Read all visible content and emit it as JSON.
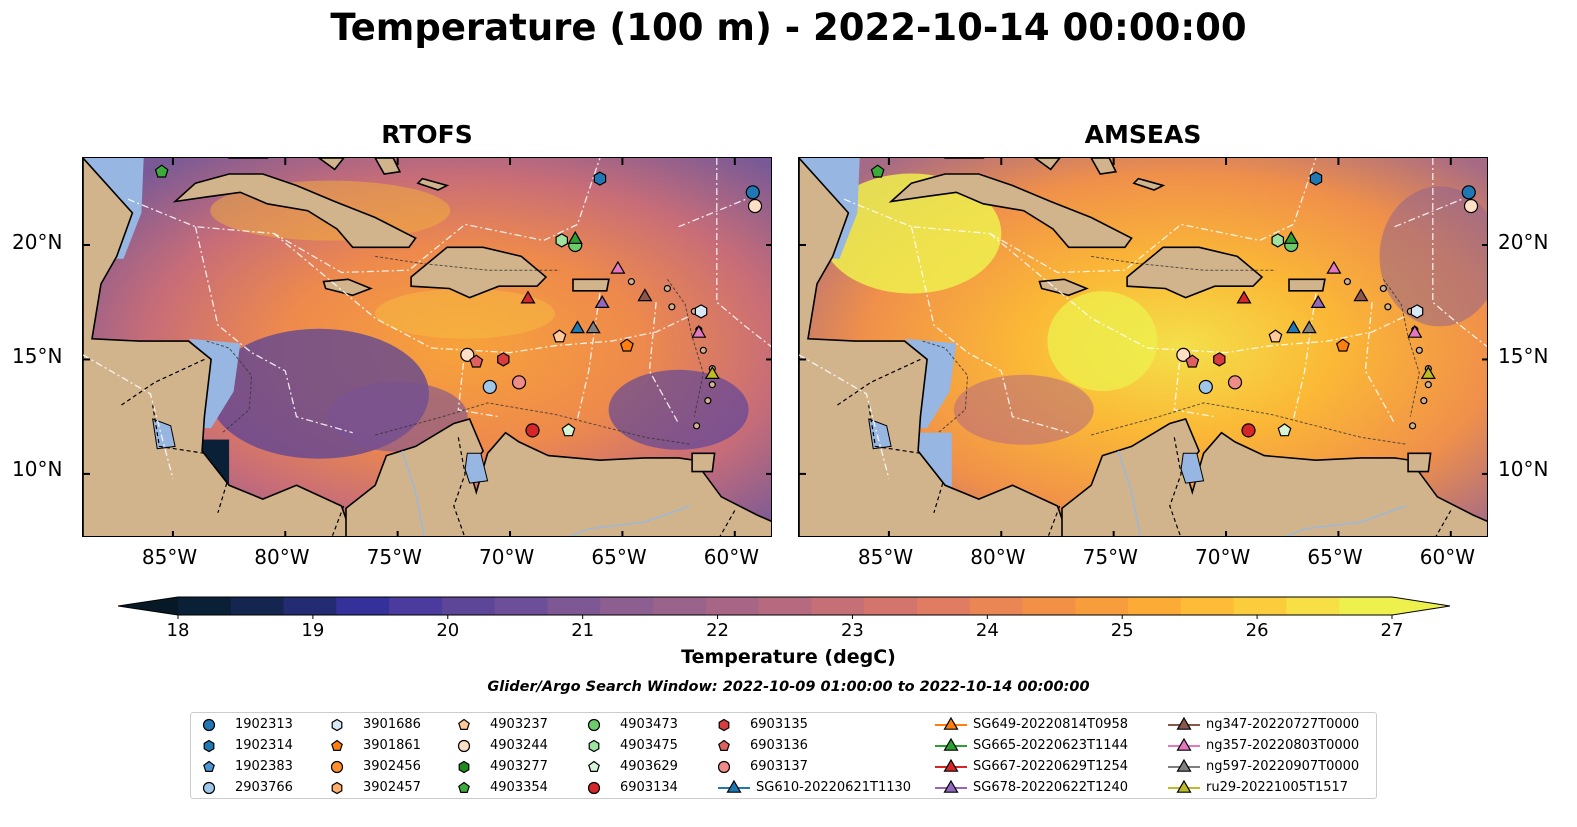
{
  "title": "Temperature (100 m) - 2022-10-14 00:00:00",
  "panels": [
    {
      "title": "RTOFS"
    },
    {
      "title": "AMSEAS"
    }
  ],
  "axes": {
    "lon_ticks": [
      "85°W",
      "80°W",
      "75°W",
      "70°W",
      "65°W",
      "60°W"
    ],
    "lat_ticks": [
      "20°N",
      "15°N",
      "10°N"
    ],
    "lon_range": [
      -89,
      -58.3
    ],
    "lat_range": [
      7.2,
      23.8
    ]
  },
  "colorbar": {
    "label": "Temperature (degC)",
    "ticks": [
      "18",
      "19",
      "20",
      "21",
      "22",
      "23",
      "24",
      "25",
      "26",
      "27"
    ],
    "range": [
      18,
      27
    ],
    "colors": [
      "#0a2036",
      "#14264f",
      "#232c73",
      "#34329a",
      "#4b3b9e",
      "#5d4598",
      "#6c4f98",
      "#7d5894",
      "#8c5f90",
      "#9a638b",
      "#a86686",
      "#b66a7f",
      "#c56f77",
      "#d3756d",
      "#e07c62",
      "#ea8554",
      "#f29046",
      "#f79d3c",
      "#fbab36",
      "#fcbc37",
      "#fbcd3d",
      "#f7df45",
      "#eef04e"
    ]
  },
  "search_window": "Glider/Argo Search Window: 2022-10-09 01:00:00 to 2022-10-14 00:00:00",
  "colors": {
    "land": "#d2b48c",
    "ocean": "#97b6e1",
    "blue": "#1f77b4",
    "orange": "#ff7f0e",
    "green": "#2ca02c",
    "red": "#d62728",
    "purple": "#9467bd",
    "brown": "#8c564b",
    "pink": "#e377c2",
    "gray": "#7f7f7f",
    "olive": "#bcbd22"
  },
  "legend": {
    "columns": [
      [
        {
          "label": "1902313",
          "marker": "circle",
          "color": "#1f77b4"
        },
        {
          "label": "1902314",
          "marker": "hexagon",
          "color": "#1f77b4"
        },
        {
          "label": "1902383",
          "marker": "pentagon",
          "color": "#4a95d2"
        },
        {
          "label": "2903766",
          "marker": "circle",
          "color": "#9ec7ea"
        }
      ],
      [
        {
          "label": "3901686",
          "marker": "hexagon",
          "color": "#d8e8f7"
        },
        {
          "label": "3901861",
          "marker": "pentagon",
          "color": "#ff7f0e"
        },
        {
          "label": "3902456",
          "marker": "circle",
          "color": "#ff8f2e"
        },
        {
          "label": "3902457",
          "marker": "hexagon",
          "color": "#ffb06b"
        }
      ],
      [
        {
          "label": "4903237",
          "marker": "pentagon",
          "color": "#ffc998"
        },
        {
          "label": "4903244",
          "marker": "circle",
          "color": "#ffe0c6"
        },
        {
          "label": "4903277",
          "marker": "hexagon",
          "color": "#1f8a1f"
        },
        {
          "label": "4903354",
          "marker": "pentagon",
          "color": "#3daa3d"
        }
      ],
      [
        {
          "label": "4903473",
          "marker": "circle",
          "color": "#6ccc6c"
        },
        {
          "label": "4903475",
          "marker": "hexagon",
          "color": "#a0e3a0"
        },
        {
          "label": "4903629",
          "marker": "pentagon",
          "color": "#d5f5d5"
        },
        {
          "label": "6903134",
          "marker": "circle",
          "color": "#d62728"
        }
      ],
      [
        {
          "label": "6903135",
          "marker": "hexagon",
          "color": "#d93c3c"
        },
        {
          "label": "6903136",
          "marker": "pentagon",
          "color": "#e06060"
        },
        {
          "label": "6903137",
          "marker": "circle",
          "color": "#f08c88"
        },
        {
          "label": "SG610-20220621T1130",
          "marker": "triangle-line",
          "color": "#1f77b4"
        }
      ],
      [
        {
          "label": "SG649-20220814T0958",
          "marker": "triangle-line",
          "color": "#ff7f0e"
        },
        {
          "label": "SG665-20220623T1144",
          "marker": "triangle-line",
          "color": "#2ca02c"
        },
        {
          "label": "SG667-20220629T1254",
          "marker": "triangle-line",
          "color": "#d62728"
        },
        {
          "label": "SG678-20220622T1240",
          "marker": "triangle-line",
          "color": "#9467bd"
        }
      ],
      [
        {
          "label": "ng347-20220727T0000",
          "marker": "triangle-line",
          "color": "#8c564b"
        },
        {
          "label": "ng357-20220803T0000",
          "marker": "triangle-line",
          "color": "#e377c2"
        },
        {
          "label": "ng597-20220907T0000",
          "marker": "triangle-line",
          "color": "#7f7f7f"
        },
        {
          "label": "ru29-20221005T1517",
          "marker": "triangle-line",
          "color": "#bcbd22"
        }
      ]
    ]
  },
  "markers": [
    {
      "lon": -59.2,
      "lat": 22.3,
      "marker": "circle",
      "color": "#1f77b4"
    },
    {
      "lon": -59.1,
      "lat": 21.7,
      "marker": "circle",
      "color": "#ffe0c6"
    },
    {
      "lon": -66.0,
      "lat": 22.9,
      "marker": "hexagon",
      "color": "#1f77b4"
    },
    {
      "lon": -85.5,
      "lat": 23.2,
      "marker": "pentagon",
      "color": "#3daa3d"
    },
    {
      "lon": -67.7,
      "lat": 20.2,
      "marker": "hexagon",
      "color": "#a0e3a0"
    },
    {
      "lon": -67.1,
      "lat": 20.0,
      "marker": "circle",
      "color": "#6ccc6c"
    },
    {
      "lon": -67.1,
      "lat": 20.3,
      "marker": "triangle",
      "color": "#2ca02c"
    },
    {
      "lon": -65.2,
      "lat": 19.0,
      "marker": "triangle",
      "color": "#e377c2"
    },
    {
      "lon": -69.2,
      "lat": 17.7,
      "marker": "triangle",
      "color": "#d62728"
    },
    {
      "lon": -65.9,
      "lat": 17.5,
      "marker": "triangle",
      "color": "#9467bd"
    },
    {
      "lon": -64.0,
      "lat": 17.8,
      "marker": "triangle",
      "color": "#8c564b"
    },
    {
      "lon": -61.5,
      "lat": 17.1,
      "marker": "hexagon",
      "color": "#d8e8f7"
    },
    {
      "lon": -61.6,
      "lat": 16.2,
      "marker": "triangle",
      "color": "#e377c2"
    },
    {
      "lon": -67.0,
      "lat": 16.4,
      "marker": "triangle",
      "color": "#1f77b4"
    },
    {
      "lon": -66.3,
      "lat": 16.4,
      "marker": "triangle",
      "color": "#7f7f7f"
    },
    {
      "lon": -67.8,
      "lat": 16.0,
      "marker": "pentagon",
      "color": "#ffc998"
    },
    {
      "lon": -64.8,
      "lat": 15.6,
      "marker": "pentagon",
      "color": "#ff7f0e"
    },
    {
      "lon": -71.9,
      "lat": 15.2,
      "marker": "circle",
      "color": "#ffe0c6"
    },
    {
      "lon": -71.5,
      "lat": 14.9,
      "marker": "pentagon",
      "color": "#e06060"
    },
    {
      "lon": -70.3,
      "lat": 15.0,
      "marker": "hexagon",
      "color": "#d93c3c"
    },
    {
      "lon": -70.9,
      "lat": 13.8,
      "marker": "circle",
      "color": "#9ec7ea"
    },
    {
      "lon": -69.6,
      "lat": 14.0,
      "marker": "circle",
      "color": "#f08c88"
    },
    {
      "lon": -61.0,
      "lat": 14.4,
      "marker": "triangle",
      "color": "#bcbd22"
    },
    {
      "lon": -69.0,
      "lat": 11.9,
      "marker": "circle",
      "color": "#d62728"
    },
    {
      "lon": -67.4,
      "lat": 11.9,
      "marker": "pentagon",
      "color": "#d5f5d5"
    }
  ]
}
